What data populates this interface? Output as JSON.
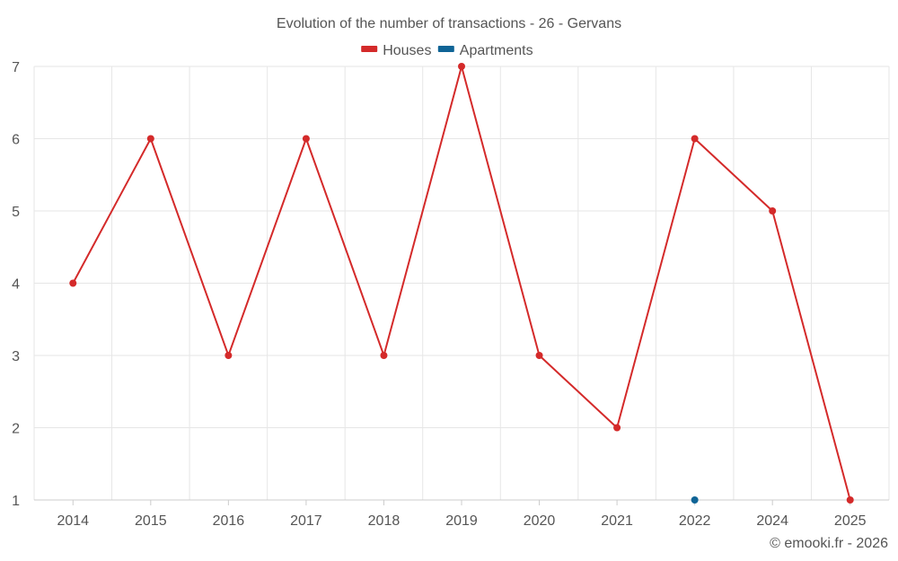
{
  "chart_data": {
    "type": "line",
    "title": "Evolution of the number of transactions - 26 - Gervans",
    "categories": [
      "2014",
      "2015",
      "2016",
      "2017",
      "2018",
      "2019",
      "2020",
      "2021",
      "2022",
      "2024",
      "2025"
    ],
    "series": [
      {
        "name": "Houses",
        "color": "#d42a2a",
        "values": [
          4,
          6,
          3,
          6,
          3,
          7,
          3,
          2,
          6,
          5,
          1
        ]
      },
      {
        "name": "Apartments",
        "color": "#0f6496",
        "values": [
          null,
          null,
          null,
          null,
          null,
          null,
          null,
          null,
          1,
          null,
          null
        ]
      }
    ],
    "yticks": [
      1,
      2,
      3,
      4,
      5,
      6,
      7
    ],
    "ylim": [
      1,
      7
    ],
    "xlabel": "",
    "ylabel": "",
    "grid": true,
    "legend_position": "top-center"
  },
  "credit": "© emooki.fr - 2026"
}
